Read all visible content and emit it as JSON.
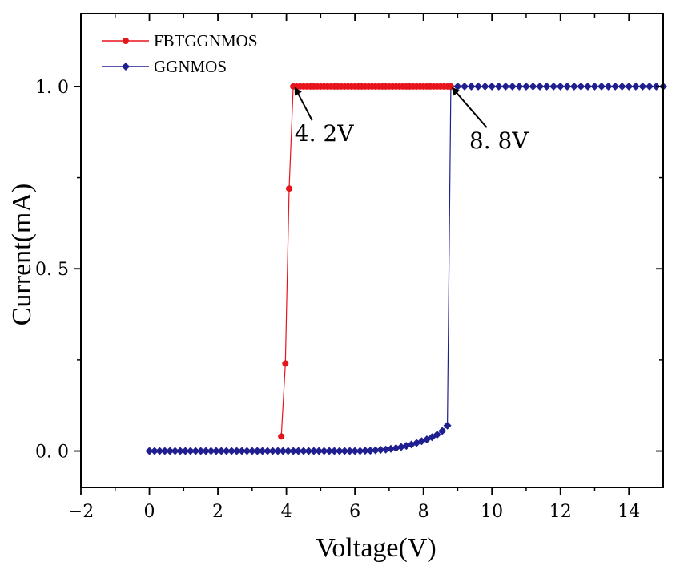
{
  "chart_data": {
    "type": "line",
    "xlabel": "Voltage(V)",
    "ylabel": "Current(mA)",
    "xlim": [
      -2,
      15
    ],
    "ylim": [
      -0.1,
      1.2
    ],
    "xticks": [
      -2,
      0,
      2,
      4,
      6,
      8,
      10,
      12,
      14
    ],
    "xtick_labels": [
      "−2",
      "0",
      "2",
      "4",
      "6",
      "8",
      "10",
      "12",
      "14"
    ],
    "yticks": [
      0,
      0.5,
      1
    ],
    "ytick_labels": [
      "0. 0",
      "0. 5",
      "1. 0"
    ],
    "grid": false,
    "legend": "top-left",
    "series": [
      {
        "name": "FBTGGNMOS",
        "color": "#e8141c",
        "marker": "circle",
        "x": [
          3.85,
          3.97,
          4.08,
          4.2,
          4.3,
          4.4,
          4.5,
          4.6,
          4.7,
          4.8,
          4.9,
          5.0,
          5.1,
          5.2,
          5.3,
          5.4,
          5.5,
          5.6,
          5.7,
          5.8,
          5.9,
          6.0,
          6.1,
          6.2,
          6.3,
          6.4,
          6.5,
          6.6,
          6.7,
          6.8,
          6.9,
          7.0,
          7.1,
          7.2,
          7.3,
          7.4,
          7.5,
          7.6,
          7.7,
          7.8,
          7.9,
          8.0,
          8.1,
          8.2,
          8.3,
          8.4,
          8.5,
          8.6,
          8.7,
          8.8
        ],
        "y": [
          0.04,
          0.24,
          0.72,
          1.0,
          1.0,
          1.0,
          1.0,
          1.0,
          1.0,
          1.0,
          1.0,
          1.0,
          1.0,
          1.0,
          1.0,
          1.0,
          1.0,
          1.0,
          1.0,
          1.0,
          1.0,
          1.0,
          1.0,
          1.0,
          1.0,
          1.0,
          1.0,
          1.0,
          1.0,
          1.0,
          1.0,
          1.0,
          1.0,
          1.0,
          1.0,
          1.0,
          1.0,
          1.0,
          1.0,
          1.0,
          1.0,
          1.0,
          1.0,
          1.0,
          1.0,
          1.0,
          1.0,
          1.0,
          1.0,
          1.0
        ]
      },
      {
        "name": "GGNMOS",
        "color": "#1f1f8f",
        "marker": "diamond",
        "x": [
          0.0,
          0.15,
          0.3,
          0.45,
          0.6,
          0.75,
          0.9,
          1.05,
          1.2,
          1.35,
          1.5,
          1.65,
          1.8,
          1.95,
          2.1,
          2.25,
          2.4,
          2.55,
          2.7,
          2.85,
          3.0,
          3.15,
          3.3,
          3.45,
          3.6,
          3.75,
          3.9,
          4.05,
          4.2,
          4.35,
          4.5,
          4.65,
          4.8,
          4.95,
          5.1,
          5.25,
          5.4,
          5.55,
          5.7,
          5.85,
          6.0,
          6.15,
          6.3,
          6.45,
          6.6,
          6.75,
          6.9,
          7.05,
          7.2,
          7.35,
          7.5,
          7.65,
          7.8,
          7.95,
          8.1,
          8.25,
          8.4,
          8.55,
          8.7,
          8.8,
          9.0,
          9.2,
          9.4,
          9.6,
          9.8,
          10.0,
          10.2,
          10.4,
          10.6,
          10.8,
          11.0,
          11.2,
          11.4,
          11.6,
          11.8,
          12.0,
          12.2,
          12.4,
          12.6,
          12.8,
          13.0,
          13.2,
          13.4,
          13.6,
          13.8,
          14.0,
          14.2,
          14.4,
          14.6,
          14.8,
          15.0
        ],
        "y": [
          0.0,
          0.0,
          0.0,
          0.0,
          0.0,
          0.0,
          0.0,
          0.0,
          0.0,
          0.0,
          0.0,
          0.0,
          0.0,
          0.0,
          0.0,
          0.0,
          0.0,
          0.0,
          0.0,
          0.0,
          0.0,
          0.0,
          0.0,
          0.0,
          0.0,
          0.0,
          0.0,
          0.0,
          0.0,
          0.0,
          0.0,
          0.0,
          0.0,
          0.0,
          0.0,
          0.0,
          0.0,
          0.0,
          0.0,
          0.0,
          0.0,
          0.0,
          0.001,
          0.001,
          0.002,
          0.003,
          0.004,
          0.006,
          0.008,
          0.011,
          0.014,
          0.018,
          0.022,
          0.027,
          0.032,
          0.038,
          0.045,
          0.055,
          0.07,
          1.0,
          1.0,
          1.0,
          1.0,
          1.0,
          1.0,
          1.0,
          1.0,
          1.0,
          1.0,
          1.0,
          1.0,
          1.0,
          1.0,
          1.0,
          1.0,
          1.0,
          1.0,
          1.0,
          1.0,
          1.0,
          1.0,
          1.0,
          1.0,
          1.0,
          1.0,
          1.0,
          1.0,
          1.0,
          1.0,
          1.0,
          1.0
        ]
      }
    ],
    "annotations": [
      {
        "text": "4. 2V",
        "target": [
          4.2,
          1.0
        ],
        "label_at": [
          5.1,
          0.85
        ]
      },
      {
        "text": "8. 8V",
        "target": [
          8.8,
          1.0
        ],
        "label_at": [
          10.2,
          0.83
        ]
      }
    ]
  }
}
